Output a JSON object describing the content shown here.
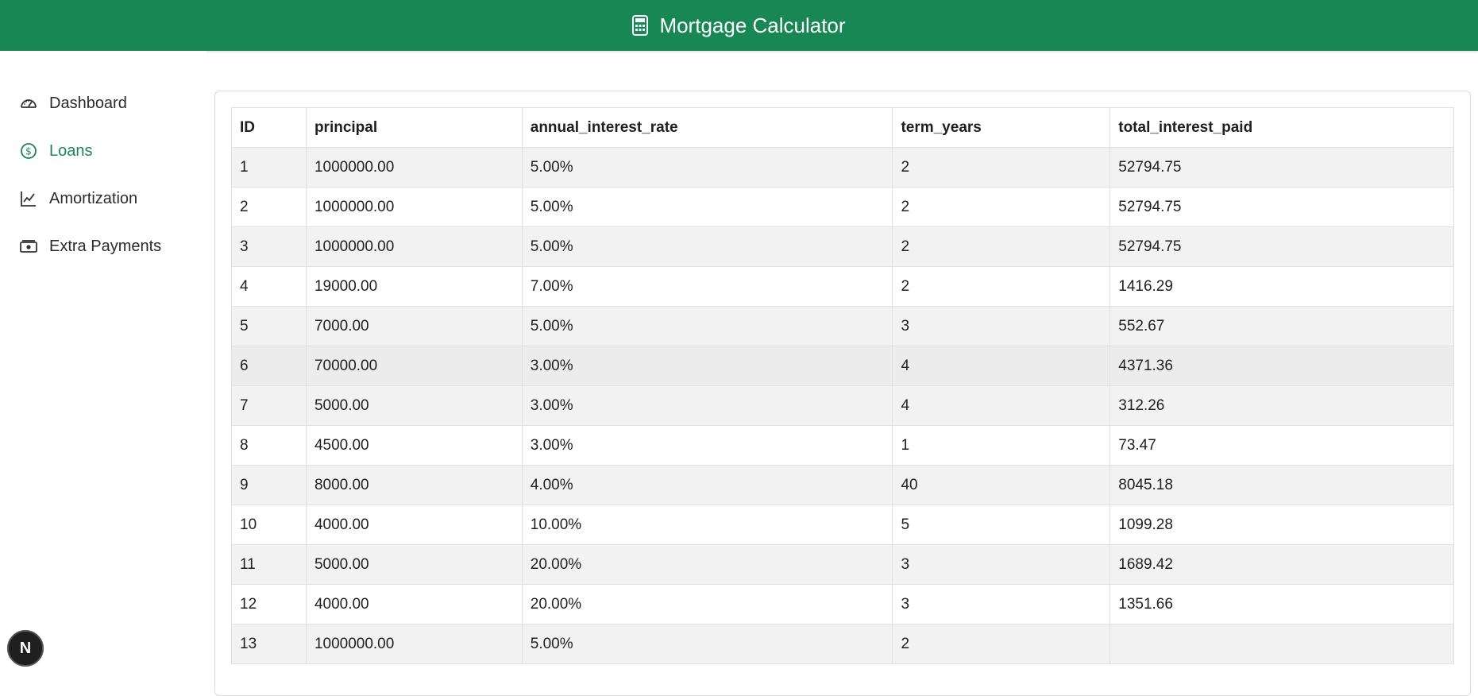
{
  "header": {
    "title": "Mortgage Calculator",
    "icon": "calculator-icon"
  },
  "sidebar": {
    "items": [
      {
        "label": "Dashboard",
        "icon": "gauge-icon"
      },
      {
        "label": "Loans",
        "icon": "dollar-coin-icon",
        "active": true
      },
      {
        "label": "Amortization",
        "icon": "line-chart-icon"
      },
      {
        "label": "Extra Payments",
        "icon": "cash-icon"
      }
    ]
  },
  "table": {
    "columns": [
      "ID",
      "principal",
      "annual_interest_rate",
      "term_years",
      "total_interest_paid"
    ],
    "rows": [
      [
        "1",
        "1000000.00",
        "5.00%",
        "2",
        "52794.75"
      ],
      [
        "2",
        "1000000.00",
        "5.00%",
        "2",
        "52794.75"
      ],
      [
        "3",
        "1000000.00",
        "5.00%",
        "2",
        "52794.75"
      ],
      [
        "4",
        "19000.00",
        "7.00%",
        "2",
        "1416.29"
      ],
      [
        "5",
        "7000.00",
        "5.00%",
        "3",
        "552.67"
      ],
      [
        "6",
        "70000.00",
        "3.00%",
        "4",
        "4371.36"
      ],
      [
        "7",
        "5000.00",
        "3.00%",
        "4",
        "312.26"
      ],
      [
        "8",
        "4500.00",
        "3.00%",
        "1",
        "73.47"
      ],
      [
        "9",
        "8000.00",
        "4.00%",
        "40",
        "8045.18"
      ],
      [
        "10",
        "4000.00",
        "10.00%",
        "5",
        "1099.28"
      ],
      [
        "11",
        "5000.00",
        "20.00%",
        "3",
        "1689.42"
      ],
      [
        "12",
        "4000.00",
        "20.00%",
        "3",
        "1351.66"
      ],
      [
        "13",
        "1000000.00",
        "5.00%",
        "2",
        ""
      ]
    ]
  },
  "badge": {
    "label": "N"
  },
  "colors": {
    "brand": "#198754",
    "stripe": "#f2f2f2",
    "border": "#dee2e6"
  }
}
